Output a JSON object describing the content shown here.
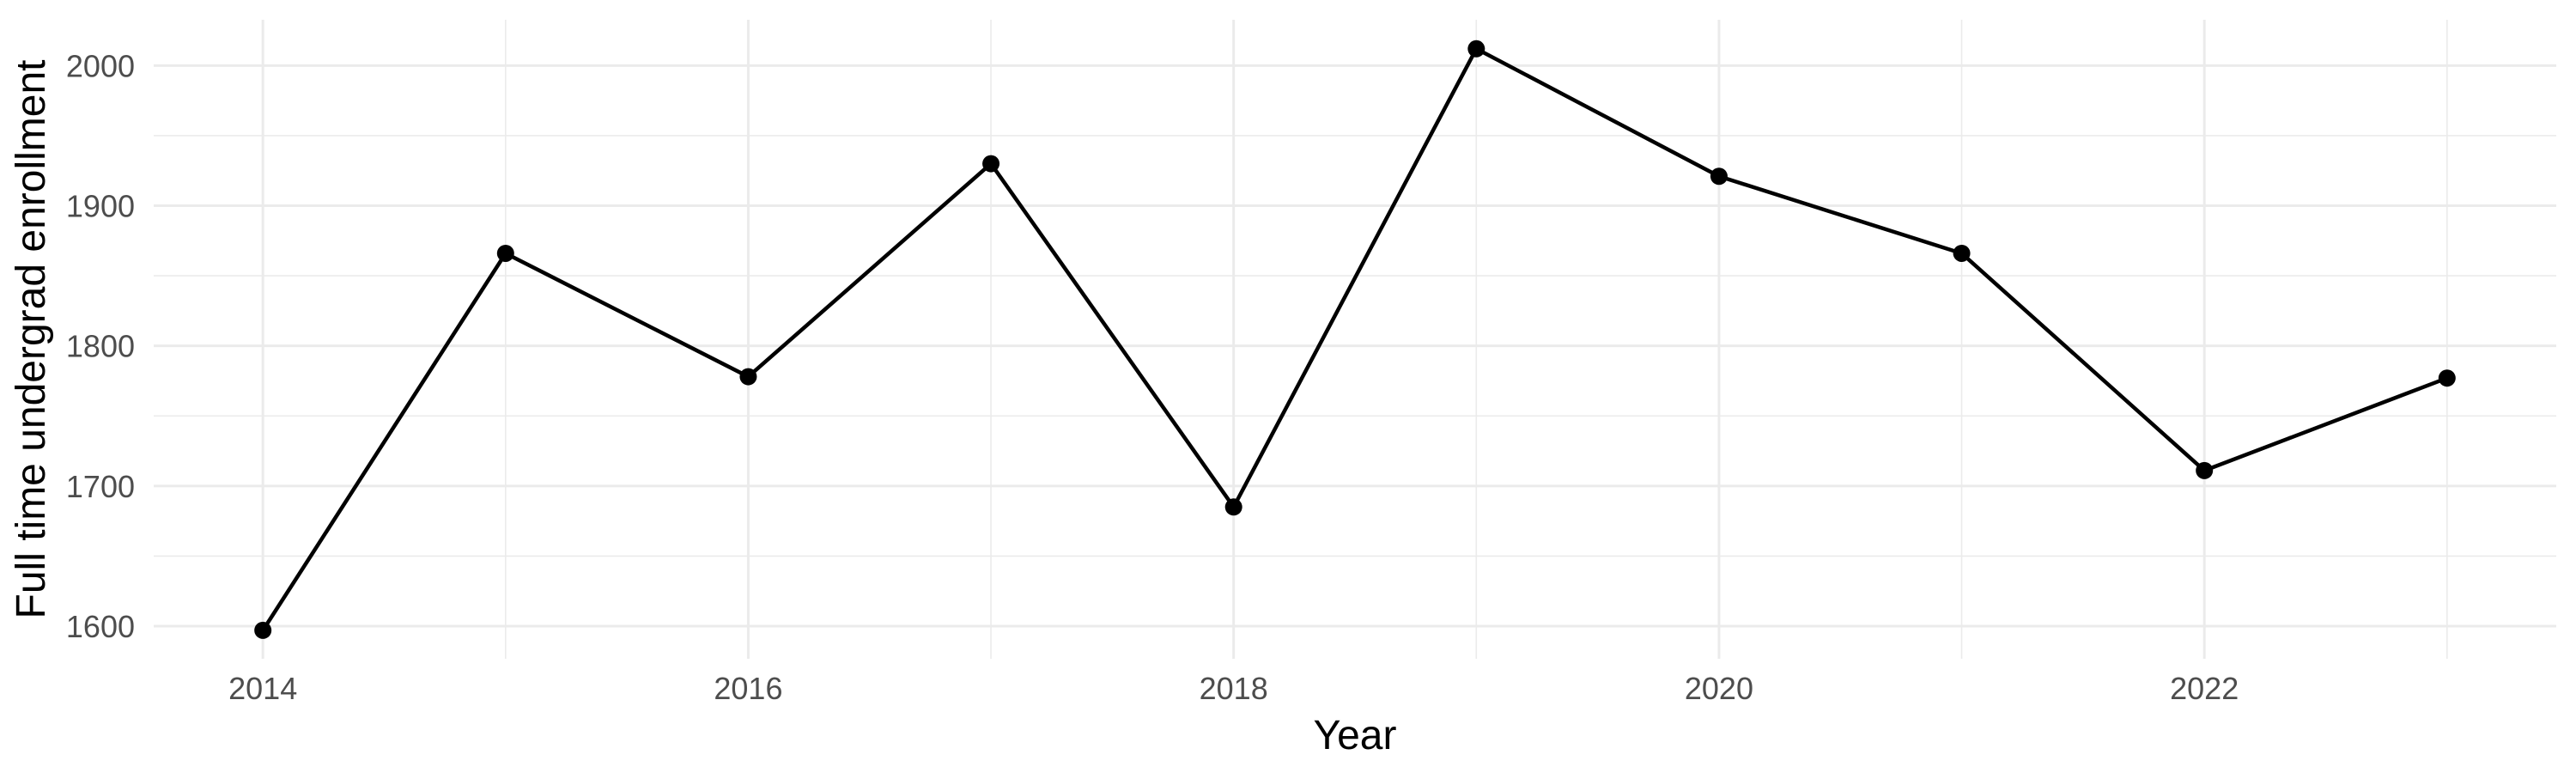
{
  "chart_data": {
    "type": "line",
    "title": "",
    "xlabel": "Year",
    "ylabel": "Full time undergrad enrollment",
    "series": [
      {
        "name": "Full time undergrad enrollment",
        "x": [
          2014,
          2015,
          2016,
          2017,
          2018,
          2019,
          2020,
          2021,
          2022,
          2023
        ],
        "values": [
          1597,
          1866,
          1778,
          1930,
          1685,
          2012,
          1921,
          1866,
          1711,
          1777
        ]
      }
    ],
    "x_major_ticks": [
      2014,
      2016,
      2018,
      2020,
      2022
    ],
    "x_tick_labels": [
      "2014",
      "2016",
      "2018",
      "2020",
      "2022"
    ],
    "x_minor_ticks": [
      2015,
      2017,
      2019,
      2021,
      2023
    ],
    "y_major_ticks": [
      1600,
      1700,
      1800,
      1900,
      2000
    ],
    "y_tick_labels": [
      "1600",
      "1700",
      "1800",
      "1900",
      "2000"
    ],
    "y_minor_ticks": [
      1650,
      1750,
      1850,
      1950
    ],
    "xlim": [
      2013.55,
      2023.45
    ],
    "ylim": [
      1576.7,
      2032.7
    ],
    "grid": "on",
    "legend": "none",
    "colors": {
      "line": "#000000",
      "point": "#000000",
      "gridline": "#EBEBEB",
      "tick_label": "#4D4D4D",
      "axis_title": "#000000",
      "background": "#FFFFFF"
    }
  }
}
